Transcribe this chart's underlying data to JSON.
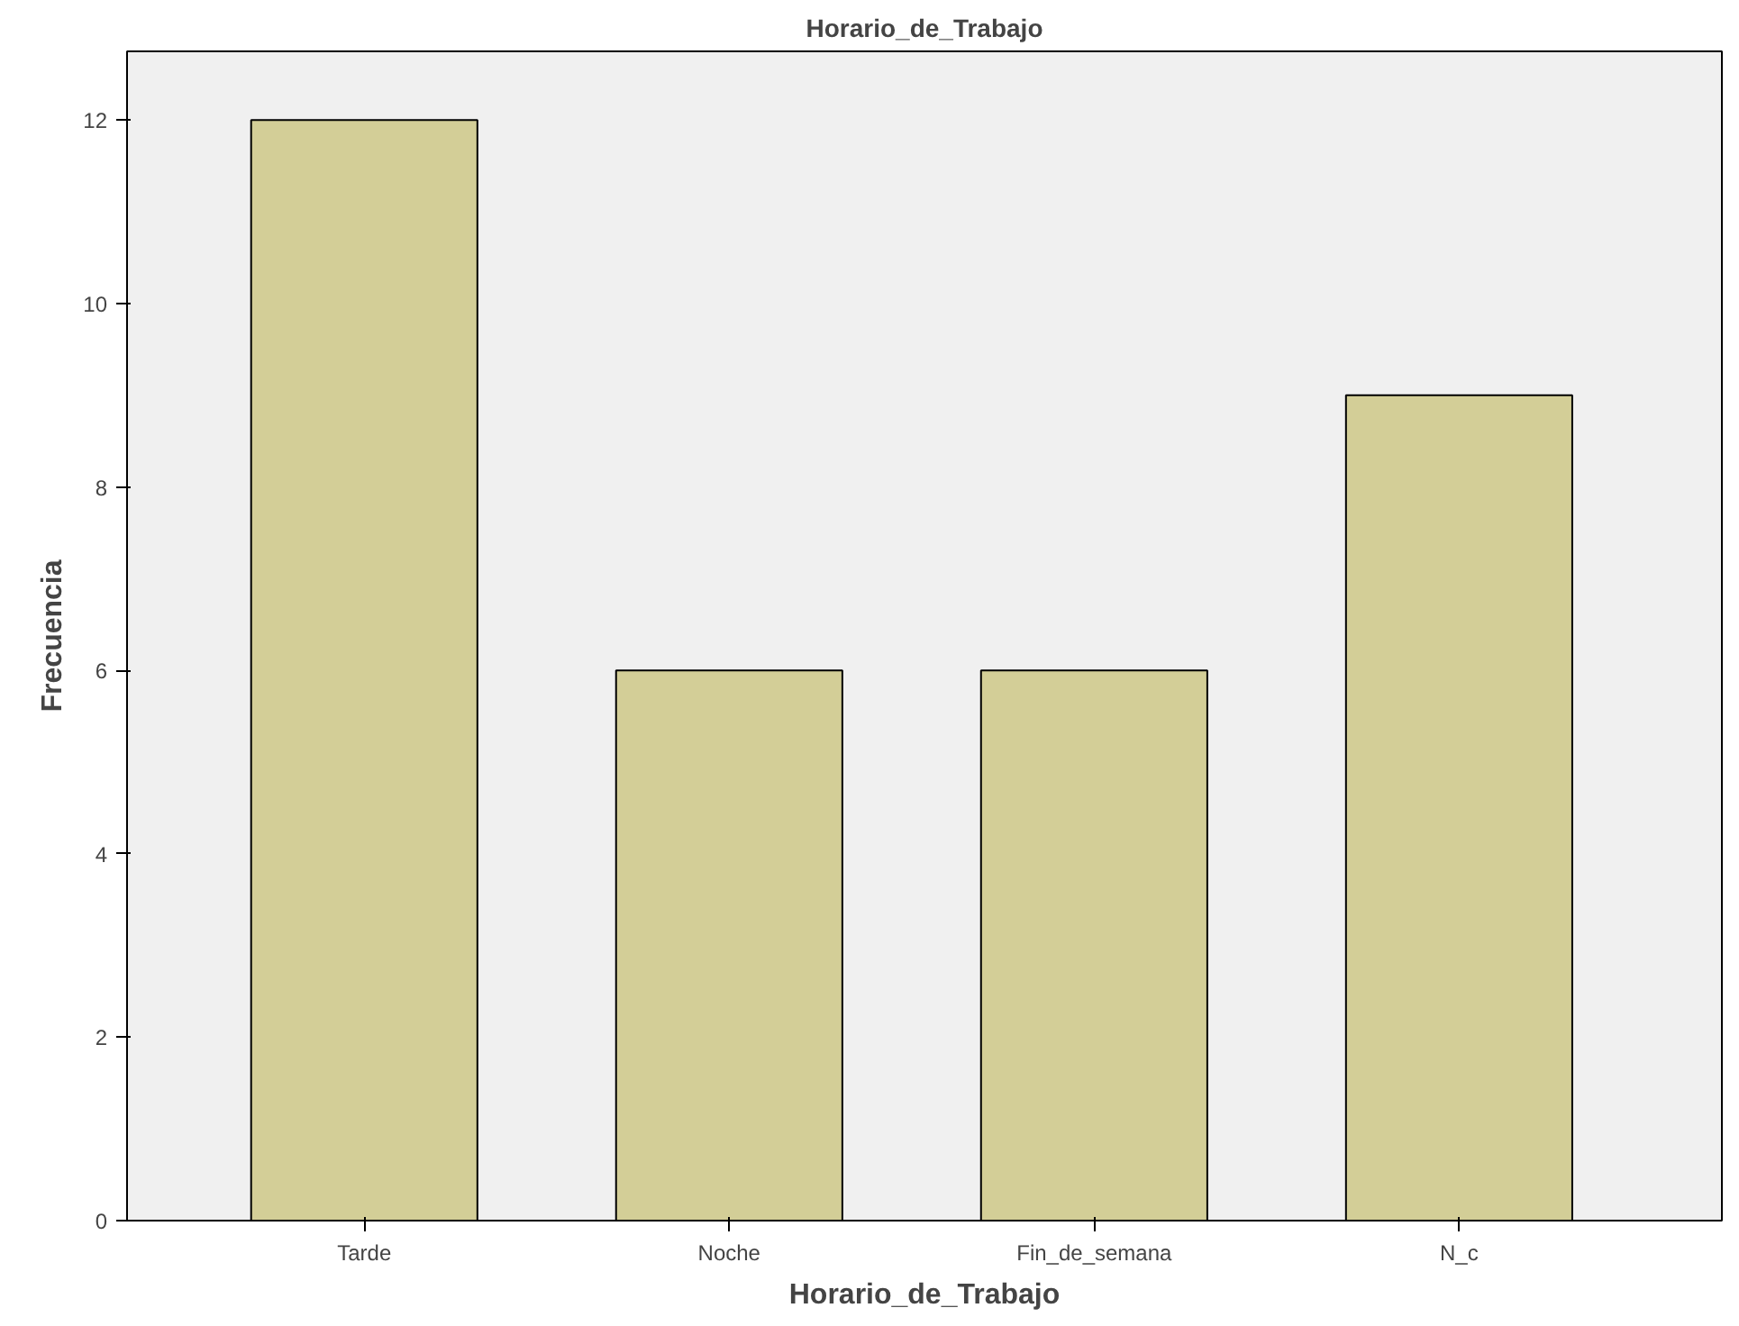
{
  "chart_data": {
    "type": "bar",
    "title": "Horario_de_Trabajo",
    "xlabel": "Horario_de_Trabajo",
    "ylabel": "Frecuencia",
    "categories": [
      "Tarde",
      "Noche",
      "Fin_de_semana",
      "N_c"
    ],
    "values": [
      12,
      6,
      6,
      9
    ],
    "color": "#d3ce97",
    "ylim": [
      0,
      12.75
    ],
    "yticks": [
      0,
      2,
      4,
      6,
      8,
      10,
      12
    ],
    "grid": false
  }
}
